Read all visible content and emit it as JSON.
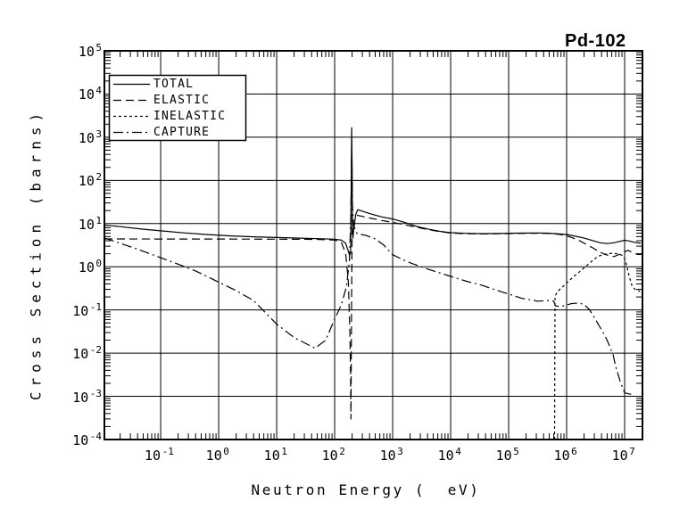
{
  "colors": {
    "ink": "#000000",
    "paper": "#ffffff"
  },
  "chart_data": {
    "type": "line",
    "title": "Pd-102",
    "xlabel": "Neutron Energy (  eV)",
    "ylabel": "Cross Section (barns)",
    "xscale": "log",
    "yscale": "log",
    "xlim": [
      0.0107,
      20300000
    ],
    "ylim": [
      0.0001,
      100000
    ],
    "grid": true,
    "x_tick_exponents": [
      -1,
      0,
      1,
      2,
      3,
      4,
      5,
      6,
      7
    ],
    "y_tick_exponents": [
      5,
      4,
      3,
      2,
      1,
      0,
      -1,
      -2,
      -3,
      -4
    ],
    "legend": {
      "position": "upper-left",
      "entries": [
        "TOTAL",
        "ELASTIC",
        "INELASTIC",
        "CAPTURE"
      ]
    },
    "series": [
      {
        "name": "TOTAL",
        "line_style": "solid",
        "points": [
          [
            0.0107,
            9.2
          ],
          [
            0.02,
            8.5
          ],
          [
            0.05,
            7.4
          ],
          [
            0.1,
            6.8
          ],
          [
            0.25,
            6.1
          ],
          [
            0.6,
            5.6
          ],
          [
            1.5,
            5.2
          ],
          [
            4,
            4.95
          ],
          [
            10,
            4.75
          ],
          [
            25,
            4.6
          ],
          [
            60,
            4.45
          ],
          [
            100,
            4.35
          ],
          [
            130,
            4.15
          ],
          [
            155,
            3.5
          ],
          [
            170,
            2.4
          ],
          [
            181,
            1.85
          ],
          [
            188,
            2.1
          ],
          [
            193,
            60
          ],
          [
            196,
            1660
          ],
          [
            200,
            200
          ],
          [
            203,
            6.5
          ],
          [
            206,
            4.6
          ],
          [
            212,
            7
          ],
          [
            230,
            16
          ],
          [
            250,
            21
          ],
          [
            400,
            17
          ],
          [
            650,
            14.3
          ],
          [
            1000,
            12.8
          ],
          [
            1600,
            10.7
          ],
          [
            2600,
            8.6
          ],
          [
            4000,
            7.5
          ],
          [
            6500,
            6.6
          ],
          [
            10000,
            6.15
          ],
          [
            18000,
            5.95
          ],
          [
            35000,
            5.85
          ],
          [
            70000,
            5.9
          ],
          [
            150000,
            6.0
          ],
          [
            300000,
            6.05
          ],
          [
            450000,
            6.0
          ],
          [
            650000,
            5.85
          ],
          [
            1000000.0,
            5.6
          ],
          [
            1400000.0,
            5.1
          ],
          [
            2000000.0,
            4.6
          ],
          [
            2800000.0,
            4.05
          ],
          [
            3800000.0,
            3.6
          ],
          [
            5000000.0,
            3.45
          ],
          [
            6500000.0,
            3.6
          ],
          [
            8000000.0,
            3.85
          ],
          [
            10000000.0,
            4.1
          ],
          [
            12000000.0,
            3.95
          ],
          [
            14500000.0,
            3.7
          ],
          [
            19000000.0,
            3.5
          ]
        ]
      },
      {
        "name": "ELASTIC",
        "line_style": "dashed",
        "points": [
          [
            0.0107,
            4.42
          ],
          [
            0.1,
            4.4
          ],
          [
            1,
            4.38
          ],
          [
            10,
            4.35
          ],
          [
            50,
            4.3
          ],
          [
            100,
            4.15
          ],
          [
            130,
            3.7
          ],
          [
            155,
            2.0
          ],
          [
            172,
            0.45
          ],
          [
            183,
            0.03
          ],
          [
            188,
            0.003
          ],
          [
            191,
            0.0003
          ],
          [
            193,
            0.004
          ],
          [
            196,
            0.3
          ],
          [
            199,
            4
          ],
          [
            202,
            16.5
          ],
          [
            230,
            15.8
          ],
          [
            250,
            15.5
          ],
          [
            400,
            13.5
          ],
          [
            650,
            11.8
          ],
          [
            1000,
            10.7
          ],
          [
            1600,
            9.4
          ],
          [
            2600,
            8.2
          ],
          [
            4000,
            7.3
          ],
          [
            6500,
            6.5
          ],
          [
            10000,
            6.05
          ],
          [
            18000,
            5.85
          ],
          [
            35000,
            5.75
          ],
          [
            70000,
            5.8
          ],
          [
            150000,
            5.92
          ],
          [
            300000,
            5.98
          ],
          [
            450000,
            5.92
          ],
          [
            600000,
            5.8
          ],
          [
            800000,
            5.55
          ],
          [
            1000000.0,
            5.2
          ],
          [
            1300000.0,
            4.6
          ],
          [
            1700000.0,
            3.95
          ],
          [
            2100000.0,
            3.4
          ],
          [
            2800000.0,
            2.75
          ],
          [
            3600000.0,
            2.25
          ],
          [
            4500000.0,
            1.95
          ],
          [
            5500000.0,
            1.8
          ],
          [
            6500000.0,
            1.72
          ],
          [
            8000000.0,
            1.92
          ],
          [
            9500000.0,
            2.18
          ],
          [
            11500000.0,
            2.4
          ],
          [
            14000000.0,
            2.1
          ],
          [
            17000000.0,
            1.92
          ],
          [
            20000000.0,
            1.95
          ]
        ]
      },
      {
        "name": "INELASTIC",
        "line_style": "short-dash",
        "points": [
          [
            620000.0,
            0.0001
          ],
          [
            630000.0,
            0.21
          ],
          [
            700000.0,
            0.27
          ],
          [
            850000.0,
            0.34
          ],
          [
            1000000.0,
            0.42
          ],
          [
            1300000.0,
            0.58
          ],
          [
            1700000.0,
            0.78
          ],
          [
            2200000.0,
            1.05
          ],
          [
            2900000.0,
            1.45
          ],
          [
            3500000.0,
            1.75
          ],
          [
            4500000.0,
            1.95
          ],
          [
            6000000.0,
            2.05
          ],
          [
            7500000.0,
            2.0
          ],
          [
            9000000.0,
            1.85
          ],
          [
            10000000.0,
            1.55
          ],
          [
            10800000.0,
            1.1
          ],
          [
            12000000.0,
            0.6
          ],
          [
            13500000.0,
            0.35
          ],
          [
            15500000.0,
            0.29
          ],
          [
            18500000.0,
            0.27
          ]
        ]
      },
      {
        "name": "CAPTURE",
        "line_style": "dash-dot",
        "points": [
          [
            0.0107,
            4.65
          ],
          [
            0.02,
            3.5
          ],
          [
            0.04,
            2.55
          ],
          [
            0.1,
            1.62
          ],
          [
            0.2,
            1.15
          ],
          [
            0.4,
            0.8
          ],
          [
            1,
            0.44
          ],
          [
            2,
            0.28
          ],
          [
            4,
            0.165
          ],
          [
            10,
            0.047
          ],
          [
            20,
            0.023
          ],
          [
            46,
            0.013
          ],
          [
            70,
            0.02
          ],
          [
            100,
            0.062
          ],
          [
            130,
            0.13
          ],
          [
            160,
            0.35
          ],
          [
            180,
            1.4
          ],
          [
            190,
            15
          ],
          [
            196,
            600
          ],
          [
            203,
            28
          ],
          [
            212,
            9
          ],
          [
            245,
            5.8
          ],
          [
            350,
            5.3
          ],
          [
            500,
            4.4
          ],
          [
            700,
            3.2
          ],
          [
            1000,
            1.9
          ],
          [
            1800,
            1.3
          ],
          [
            3700,
            0.92
          ],
          [
            10000,
            0.6
          ],
          [
            20000,
            0.45
          ],
          [
            35000,
            0.37
          ],
          [
            60000,
            0.29
          ],
          [
            100000,
            0.235
          ],
          [
            170000,
            0.185
          ],
          [
            320000,
            0.16
          ],
          [
            500000,
            0.165
          ],
          [
            600000,
            0.16
          ],
          [
            640000,
            0.125
          ],
          [
            750000,
            0.12
          ],
          [
            900000,
            0.125
          ],
          [
            1200000.0,
            0.14
          ],
          [
            1600000.0,
            0.145
          ],
          [
            2000000.0,
            0.135
          ],
          [
            2500000.0,
            0.1
          ],
          [
            3100000.0,
            0.062
          ],
          [
            3800000.0,
            0.039
          ],
          [
            4900000.0,
            0.021
          ],
          [
            6300000.0,
            0.0094
          ],
          [
            7000000.0,
            0.005
          ],
          [
            8400000.0,
            0.0022
          ],
          [
            10000000.0,
            0.0012
          ],
          [
            13500000.0,
            0.0011
          ]
        ]
      }
    ]
  }
}
